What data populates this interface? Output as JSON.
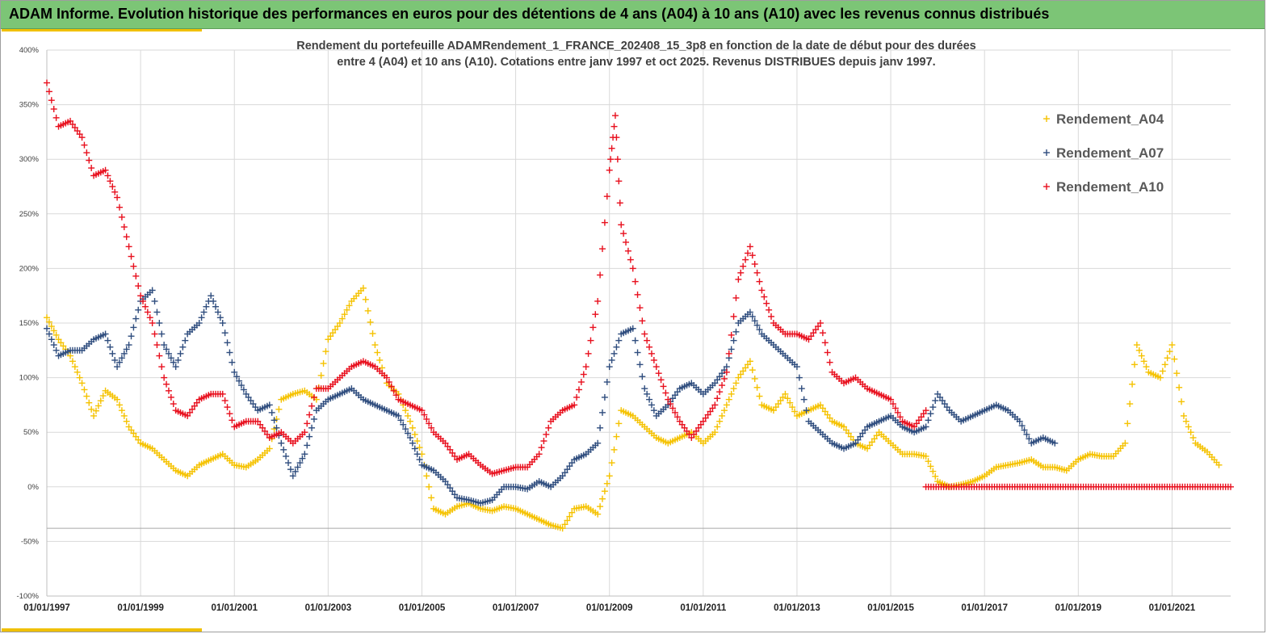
{
  "banner": {
    "title": "ADAM Informe. Evolution historique des performances en euros pour des détentions de 4 ans (A04) à 10 ans (A10) avec les revenus connus distribués"
  },
  "colors": {
    "banner": "#7cc576",
    "accent": "#f0c000",
    "A04": "#f5c200",
    "A07": "#2f4d7e",
    "A10": "#e8101e"
  },
  "chart_data": {
    "type": "scatter",
    "title_lines": [
      "Rendement du portefeuille ADAMRendement_1_FRANCE_202408_15_3p8  en fonction de la date de début pour des durées",
      "entre 4 (A04) et 10 ans (A10). Cotations entre janv 1997 et oct 2025. Revenus DISTRIBUES depuis janv 1997."
    ],
    "xlabel": "",
    "ylabel": "",
    "xlim": [
      1997.0,
      2022.25
    ],
    "ylim": [
      -100,
      400
    ],
    "y_ticks": [
      -100,
      -50,
      0,
      50,
      100,
      150,
      200,
      250,
      300,
      350,
      400
    ],
    "y_tick_labels": [
      "-100%",
      "-50%",
      "0%",
      "50%",
      "100%",
      "150%",
      "200%",
      "250%",
      "300%",
      "350%",
      "400%"
    ],
    "x_ticks": [
      1997,
      1999,
      2001,
      2003,
      2005,
      2007,
      2009,
      2011,
      2013,
      2015,
      2017,
      2019,
      2021
    ],
    "x_tick_labels": [
      "01/01/1997",
      "01/01/1999",
      "01/01/2001",
      "01/01/2003",
      "01/01/2005",
      "01/01/2007",
      "01/01/2009",
      "01/01/2011",
      "01/01/2013",
      "01/01/2015",
      "01/01/2017",
      "01/01/2019",
      "01/01/2021"
    ],
    "reference_line_y": -38,
    "legend_position": "top-right",
    "series": [
      {
        "name": "Rendement_A04",
        "x": [
          1997.0,
          1997.25,
          1997.5,
          1997.75,
          1998.0,
          1998.25,
          1998.5,
          1998.75,
          1999.0,
          1999.25,
          1999.5,
          1999.75,
          2000.0,
          2000.25,
          2000.5,
          2000.75,
          2001.0,
          2001.25,
          2001.5,
          2001.75,
          2002.0,
          2002.25,
          2002.5,
          2002.75,
          2003.0,
          2003.25,
          2003.5,
          2003.75,
          2004.0,
          2004.25,
          2004.5,
          2004.75,
          2005.0,
          2005.25,
          2005.5,
          2005.75,
          2006.0,
          2006.25,
          2006.5,
          2006.75,
          2007.0,
          2007.25,
          2007.5,
          2007.75,
          2008.0,
          2008.25,
          2008.5,
          2008.75,
          2009.0,
          2009.25,
          2009.5,
          2009.75,
          2010.0,
          2010.25,
          2010.5,
          2010.75,
          2011.0,
          2011.25,
          2011.5,
          2011.75,
          2012.0,
          2012.25,
          2012.5,
          2012.75,
          2013.0,
          2013.25,
          2013.5,
          2013.75,
          2014.0,
          2014.25,
          2014.5,
          2014.75,
          2015.0,
          2015.25,
          2015.5,
          2015.75,
          2016.0,
          2016.25,
          2016.5,
          2016.75,
          2017.0,
          2017.25,
          2017.5,
          2017.75,
          2018.0,
          2018.25,
          2018.5,
          2018.75,
          2019.0,
          2019.25,
          2019.5,
          2019.75,
          2020.0,
          2020.25,
          2020.5,
          2020.75,
          2021.0,
          2021.25,
          2021.5,
          2021.75,
          2022.0
        ],
        "y": [
          155,
          135,
          120,
          95,
          65,
          88,
          80,
          55,
          40,
          35,
          25,
          15,
          10,
          20,
          25,
          30,
          20,
          18,
          25,
          35,
          80,
          85,
          88,
          80,
          135,
          150,
          170,
          182,
          130,
          95,
          85,
          60,
          30,
          -20,
          -25,
          -18,
          -15,
          -20,
          -22,
          -18,
          -20,
          -25,
          -30,
          -35,
          -38,
          -20,
          -18,
          -25,
          10,
          70,
          65,
          55,
          45,
          40,
          45,
          50,
          40,
          50,
          75,
          100,
          115,
          75,
          70,
          85,
          65,
          70,
          75,
          60,
          55,
          40,
          35,
          50,
          40,
          30,
          30,
          28,
          5,
          0,
          2,
          5,
          10,
          18,
          20,
          22,
          25,
          18,
          18,
          15,
          25,
          30,
          28,
          28,
          40,
          130,
          105,
          100,
          130,
          65,
          40,
          32,
          20
        ]
      },
      {
        "name": "Rendement_A07",
        "x": [
          1997.0,
          1997.25,
          1997.5,
          1997.75,
          1998.0,
          1998.25,
          1998.5,
          1998.75,
          1999.0,
          1999.25,
          1999.5,
          1999.75,
          2000.0,
          2000.25,
          2000.5,
          2000.75,
          2001.0,
          2001.25,
          2001.5,
          2001.75,
          2002.0,
          2002.25,
          2002.5,
          2002.75,
          2003.0,
          2003.25,
          2003.5,
          2003.75,
          2004.0,
          2004.25,
          2004.5,
          2004.75,
          2005.0,
          2005.25,
          2005.5,
          2005.75,
          2006.0,
          2006.25,
          2006.5,
          2006.75,
          2007.0,
          2007.25,
          2007.5,
          2007.75,
          2008.0,
          2008.25,
          2008.5,
          2008.75,
          2009.0,
          2009.25,
          2009.5,
          2009.75,
          2010.0,
          2010.25,
          2010.5,
          2010.75,
          2011.0,
          2011.25,
          2011.5,
          2011.75,
          2012.0,
          2012.25,
          2012.5,
          2012.75,
          2013.0,
          2013.25,
          2013.5,
          2013.75,
          2014.0,
          2014.25,
          2014.5,
          2014.75,
          2015.0,
          2015.25,
          2015.5,
          2015.75,
          2016.0,
          2016.25,
          2016.5,
          2016.75,
          2017.0,
          2017.25,
          2017.5,
          2017.75,
          2018.0,
          2018.25,
          2018.5
        ],
        "y": [
          145,
          120,
          125,
          125,
          135,
          140,
          110,
          130,
          170,
          180,
          130,
          110,
          140,
          150,
          175,
          150,
          105,
          85,
          70,
          75,
          40,
          10,
          30,
          70,
          80,
          85,
          90,
          80,
          75,
          70,
          65,
          45,
          20,
          15,
          5,
          -10,
          -12,
          -15,
          -12,
          0,
          0,
          -2,
          5,
          0,
          10,
          25,
          30,
          40,
          110,
          140,
          145,
          90,
          65,
          75,
          90,
          95,
          85,
          95,
          110,
          150,
          160,
          140,
          130,
          120,
          110,
          60,
          50,
          40,
          35,
          40,
          55,
          60,
          65,
          55,
          50,
          55,
          85,
          70,
          60,
          65,
          70,
          75,
          70,
          60,
          40,
          45,
          40
        ]
      },
      {
        "name": "Rendement_A10",
        "x": [
          1997.0,
          1997.25,
          1997.5,
          1997.75,
          1998.0,
          1998.25,
          1998.5,
          1998.75,
          1999.0,
          1999.25,
          1999.5,
          1999.75,
          2000.0,
          2000.25,
          2000.5,
          2000.75,
          2001.0,
          2001.25,
          2001.5,
          2001.75,
          2002.0,
          2002.25,
          2002.5,
          2002.75,
          2003.0,
          2003.25,
          2003.5,
          2003.75,
          2004.0,
          2004.25,
          2004.5,
          2004.75,
          2005.0,
          2005.25,
          2005.5,
          2005.75,
          2006.0,
          2006.25,
          2006.5,
          2006.75,
          2007.0,
          2007.25,
          2007.5,
          2007.75,
          2008.0,
          2008.25,
          2008.5,
          2008.75,
          2009.0,
          2009.125,
          2009.25,
          2009.5,
          2009.75,
          2010.0,
          2010.25,
          2010.5,
          2010.75,
          2011.0,
          2011.25,
          2011.5,
          2011.75,
          2012.0,
          2012.25,
          2012.5,
          2012.75,
          2013.0,
          2013.25,
          2013.5,
          2013.75,
          2014.0,
          2014.25,
          2014.5,
          2014.75,
          2015.0,
          2015.25,
          2015.5,
          2015.75
        ],
        "y": [
          370,
          330,
          335,
          320,
          285,
          290,
          265,
          220,
          175,
          150,
          100,
          70,
          65,
          80,
          85,
          85,
          55,
          60,
          60,
          45,
          50,
          40,
          50,
          90,
          90,
          100,
          110,
          115,
          110,
          100,
          80,
          75,
          70,
          50,
          40,
          25,
          30,
          20,
          12,
          15,
          18,
          18,
          30,
          60,
          70,
          75,
          110,
          170,
          290,
          340,
          240,
          200,
          140,
          110,
          80,
          60,
          45,
          60,
          75,
          105,
          190,
          220,
          180,
          150,
          140,
          140,
          135,
          150,
          105,
          95,
          100,
          90,
          85,
          80,
          60,
          55,
          70
        ]
      },
      {
        "name": "Rendement_A10 (plateau)",
        "legend": false,
        "x": [
          2015.75,
          2022.25
        ],
        "y": [
          0,
          0
        ]
      }
    ]
  }
}
